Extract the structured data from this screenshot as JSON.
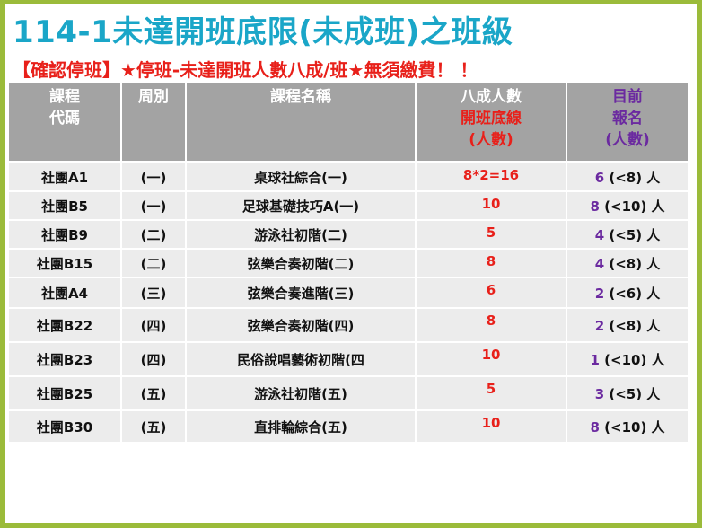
{
  "title": "114-1未達開班底限(未成班)之班級",
  "subtitle": "【確認停班】★停班-未達開班人數八成/班★無須繳費！ ！",
  "table": {
    "headers": {
      "code": [
        "課程",
        "代碼"
      ],
      "week": "周別",
      "name": "課程名稱",
      "min": [
        "八成人數",
        "開班底線",
        "(人數)"
      ],
      "current": [
        "目前",
        "報名",
        "(人數)"
      ]
    },
    "rows": [
      {
        "code": "社團A1",
        "week": "(一)",
        "name": "桌球社綜合(一)",
        "min": "8*2=16",
        "current": "6",
        "range": "(<8) 人"
      },
      {
        "code": "社團B5",
        "week": "(一)",
        "name": "足球基礎技巧A(一)",
        "min": "10",
        "current": "8",
        "range": "(<10) 人"
      },
      {
        "code": "社團B9",
        "week": "(二)",
        "name": "游泳社初階(二)",
        "min": "5",
        "current": "4",
        "range": "(<5) 人"
      },
      {
        "code": "社團B15",
        "week": "(二)",
        "name": "弦樂合奏初階(二)",
        "min": "8",
        "current": "4",
        "range": "(<8) 人"
      },
      {
        "code": "社團A4",
        "week": "(三)",
        "name": "弦樂合奏進階(三)",
        "min": "6",
        "current": "2",
        "range": "(<6) 人"
      },
      {
        "code": "社團B22",
        "week": "(四)",
        "name": "弦樂合奏初階(四)",
        "min": "8",
        "current": "2",
        "range": "(<8) 人"
      },
      {
        "code": "社團B23",
        "week": "(四)",
        "name": "民俗說唱藝術初階(四",
        "min": "10",
        "current": "1",
        "range": "(<10) 人"
      },
      {
        "code": "社團B25",
        "week": "(五)",
        "name": "游泳社初階(五)",
        "min": "5",
        "current": "3",
        "range": "(<5) 人"
      },
      {
        "code": "社團B30",
        "week": "(五)",
        "name": "直排輪綜合(五)",
        "min": "10",
        "current": "8",
        "range": "(<10) 人"
      }
    ]
  }
}
